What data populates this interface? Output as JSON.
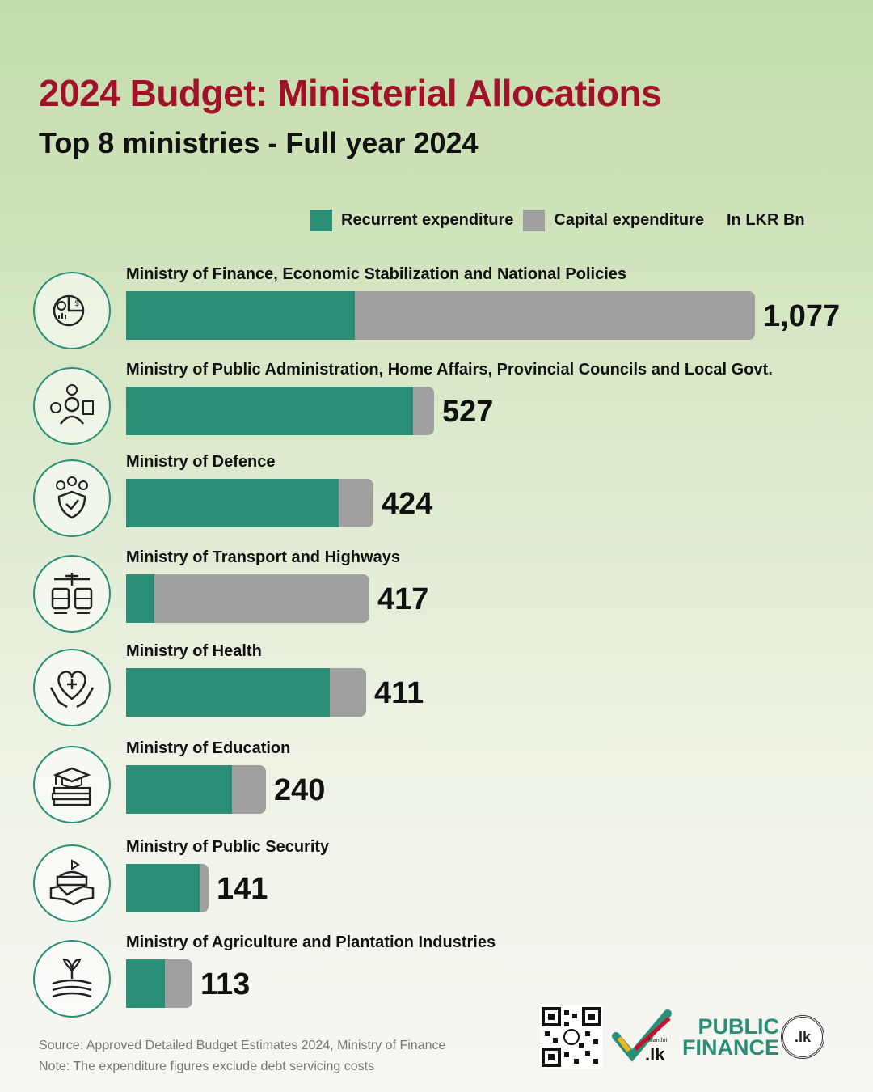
{
  "title": "2024 Budget: Ministerial Allocations",
  "subtitle": "Top 8 ministries - Full year 2024",
  "legend": {
    "recurrent": "Recurrent expenditure",
    "capital": "Capital expenditure",
    "unit": "In LKR Bn"
  },
  "colors": {
    "recurrent": "#2a8f76",
    "capital": "#a0a0a0",
    "title": "#a1122a"
  },
  "chart_data": {
    "type": "bar",
    "orientation": "horizontal",
    "stacked": true,
    "title": "2024 Budget: Ministerial Allocations",
    "subtitle": "Top 8 ministries - Full year 2024",
    "unit": "In LKR Bn",
    "legend_position": "top-right",
    "categories": [
      "Ministry of Finance, Economic Stabilization and National Policies",
      "Ministry of Public Administration, Home Affairs, Provincial Councils and Local Govt.",
      "Ministry of Defence",
      "Ministry of Transport and Highways",
      "Ministry of Health",
      "Ministry of Education",
      "Ministry of Public Security",
      "Ministry of Agriculture and Plantation Industries"
    ],
    "totals": [
      1077,
      527,
      424,
      417,
      411,
      240,
      141,
      113
    ],
    "total_labels": [
      "1,077",
      "527",
      "424",
      "417",
      "411",
      "240",
      "141",
      "113"
    ],
    "series": [
      {
        "name": "Recurrent expenditure",
        "values": [
          392,
          491,
          364,
          48,
          349,
          182,
          126,
          67
        ]
      },
      {
        "name": "Capital expenditure",
        "values": [
          685,
          36,
          60,
          369,
          62,
          58,
          15,
          46
        ]
      }
    ],
    "icons": [
      "finance-chart-icon",
      "administration-people-icon",
      "defence-shield-icon",
      "transport-icon",
      "health-heart-icon",
      "education-books-icon",
      "security-handshake-icon",
      "agriculture-plant-icon"
    ]
  },
  "footer": {
    "source": "Source: Approved Detailed Budget Estimates 2024, Ministry of Finance",
    "note": "Note: The expenditure figures exclude debt servicing costs",
    "logo_lk": ".lk",
    "logo_lk_small": "Manthri",
    "logo_pf_line1": "PUBLIC",
    "logo_pf_line2": "FINANCE",
    "logo_pf_seal": ".lk"
  }
}
